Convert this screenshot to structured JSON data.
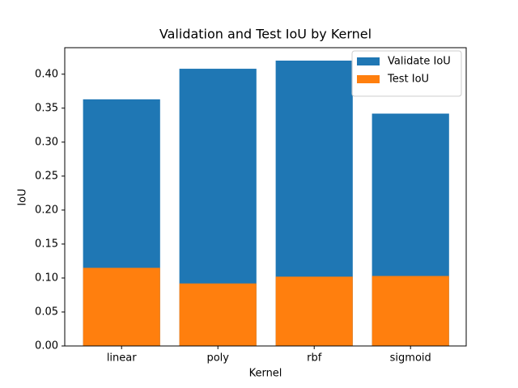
{
  "chart_data": {
    "type": "bar",
    "title": "Validation and Test IoU by Kernel",
    "x_label": "Kernel",
    "y_label": "IoU",
    "categories": [
      "linear",
      "poly",
      "rbf",
      "sigmoid"
    ],
    "series": [
      {
        "name": "Validate IoU",
        "color": "#1f77b4",
        "values": [
          0.363,
          0.408,
          0.42,
          0.342
        ]
      },
      {
        "name": "Test IoU",
        "color": "#ff7f0e",
        "values": [
          0.115,
          0.092,
          0.102,
          0.103
        ]
      }
    ],
    "ylim": [
      0,
      0.439
    ],
    "yticks": [
      {
        "value": 0,
        "label": "0.00"
      },
      {
        "value": 0.05,
        "label": "0.05"
      },
      {
        "value": 0.1,
        "label": "0.10"
      },
      {
        "value": 0.15,
        "label": "0.15"
      },
      {
        "value": 0.2,
        "label": "0.20"
      },
      {
        "value": 0.25,
        "label": "0.25"
      },
      {
        "value": 0.3,
        "label": "0.30"
      },
      {
        "value": 0.35,
        "label": "0.35"
      },
      {
        "value": 0.4,
        "label": "0.40"
      }
    ],
    "legend": "upper right",
    "grid": false
  }
}
